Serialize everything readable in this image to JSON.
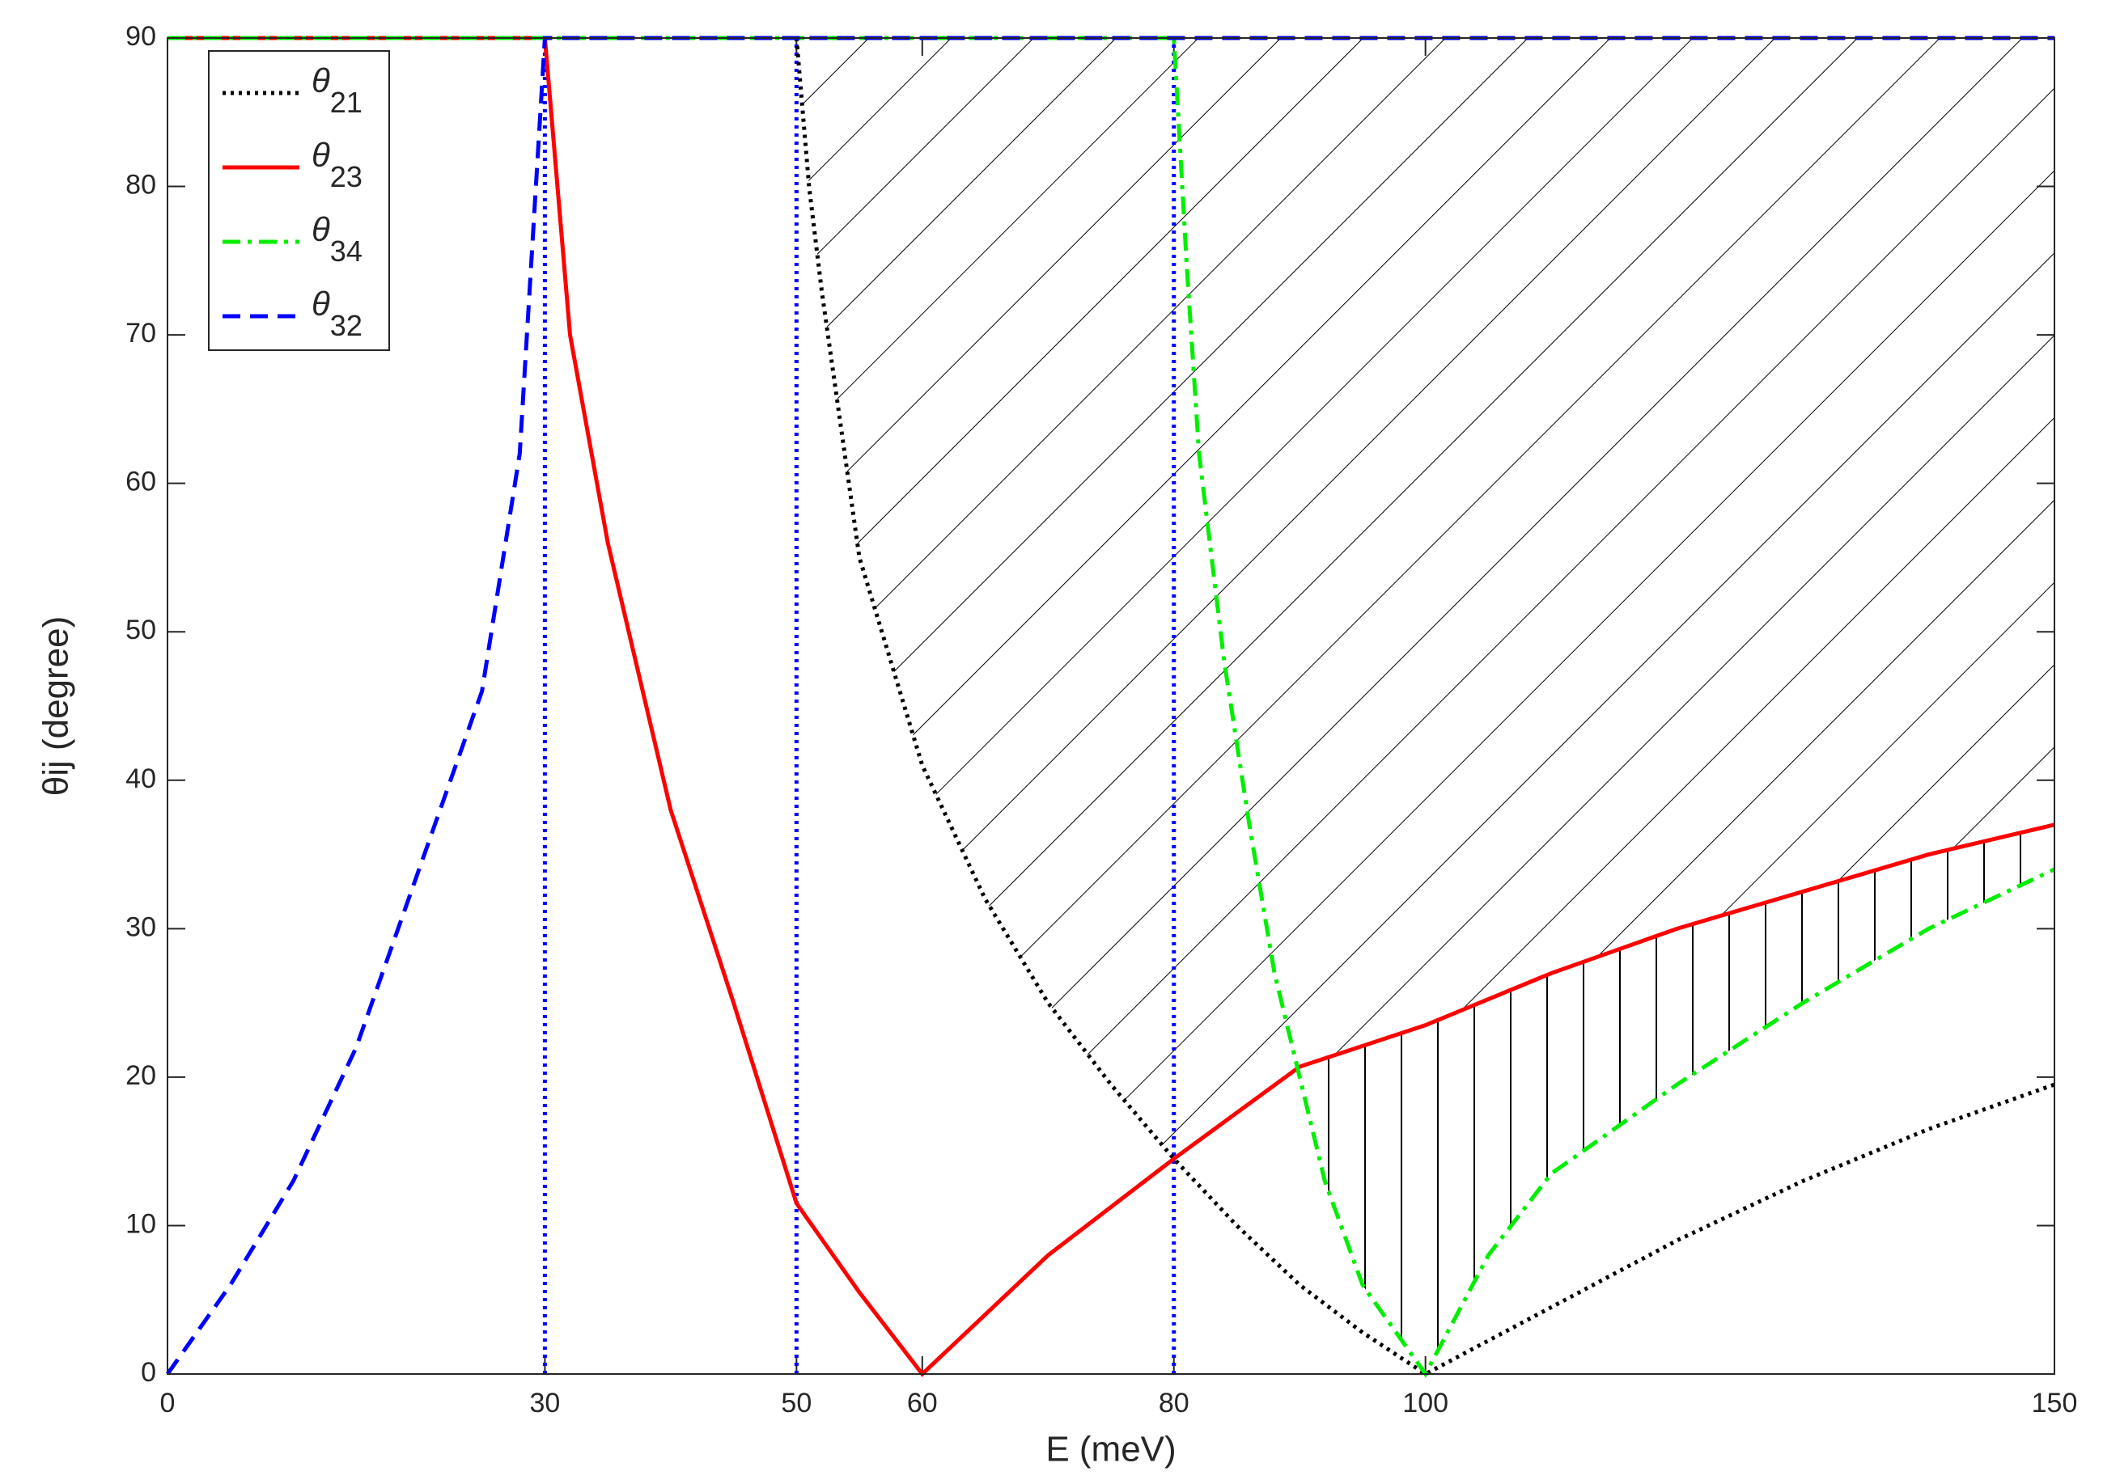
{
  "chart_data": {
    "type": "line",
    "xlabel": "E (meV)",
    "ylabel": "θij (degree)",
    "xlim": [
      0,
      150
    ],
    "ylim": [
      0,
      90
    ],
    "xticks": [
      0,
      30,
      50,
      60,
      80,
      100,
      150
    ],
    "yticks": [
      0,
      10,
      20,
      30,
      40,
      50,
      60,
      70,
      80,
      90
    ],
    "legend": "upper left",
    "vlines": [
      30,
      50,
      80
    ],
    "vline_color": "#0000ff",
    "series": [
      {
        "name": "θ21",
        "color": "#000000",
        "style": "dotted",
        "x": [
          50,
          51,
          52,
          55,
          60,
          65,
          70,
          75,
          80,
          85,
          90,
          95,
          100,
          110,
          120,
          130,
          140,
          150
        ],
        "values": [
          90,
          80,
          73,
          55,
          41,
          32,
          25,
          19.5,
          14.5,
          10,
          6,
          2.8,
          0,
          4.5,
          9,
          13,
          16.5,
          19.5
        ]
      },
      {
        "name": "θ23",
        "color": "#ff0000",
        "style": "solid",
        "x": [
          0,
          30,
          32,
          35,
          40,
          45,
          50,
          55,
          60,
          70,
          80,
          90,
          100,
          110,
          120,
          130,
          140,
          150
        ],
        "values": [
          90,
          90,
          70,
          56,
          38,
          25,
          11.5,
          5.5,
          0,
          8,
          14.5,
          20.7,
          23.5,
          27,
          30,
          32.5,
          35,
          37
        ]
      },
      {
        "name": "θ34",
        "color": "#00ee00",
        "style": "dashdot",
        "x": [
          0,
          80,
          81,
          82,
          84,
          86,
          88,
          90,
          92,
          95,
          100,
          105,
          110,
          120,
          130,
          140,
          150
        ],
        "values": [
          90,
          90,
          75,
          62,
          48,
          37,
          27,
          20,
          13,
          6,
          0,
          8,
          13.5,
          19.5,
          25,
          30,
          34
        ]
      },
      {
        "name": "θ32",
        "color": "#0000ff",
        "style": "dashed",
        "x": [
          0,
          5,
          10,
          15,
          20,
          25,
          28,
          30,
          150
        ],
        "values": [
          0,
          6,
          13,
          22,
          34,
          46,
          62,
          90,
          90
        ]
      }
    ]
  }
}
